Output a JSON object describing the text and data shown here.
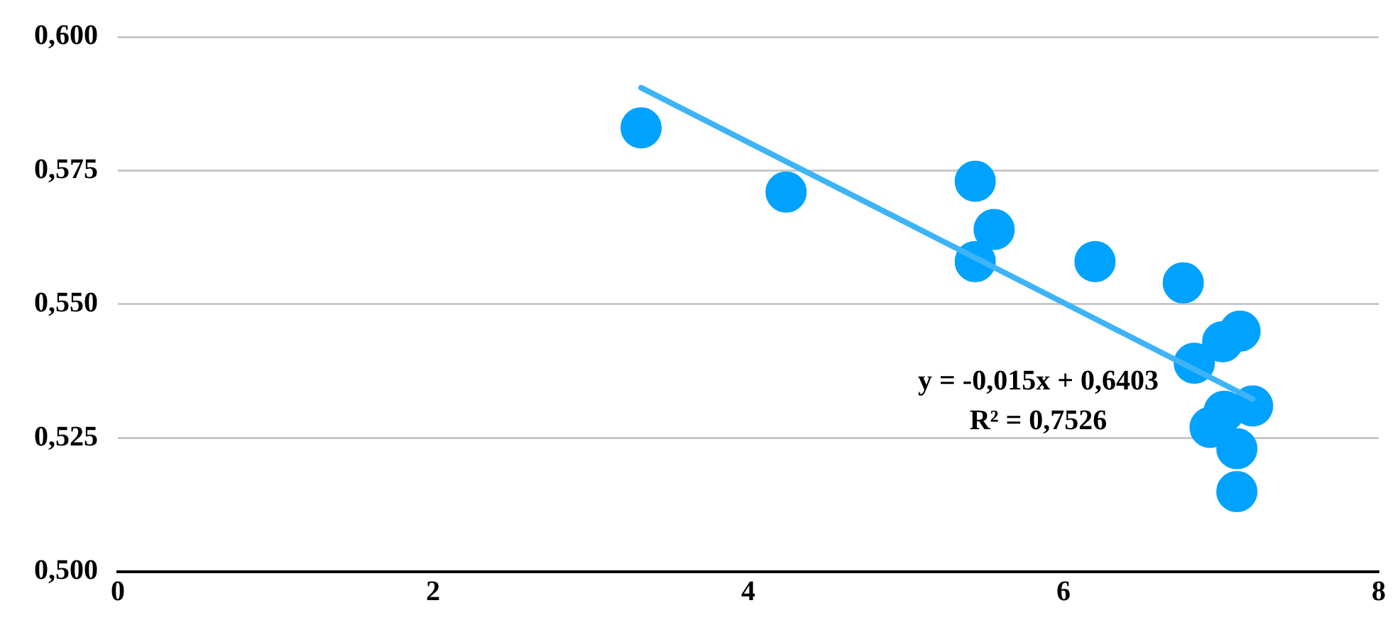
{
  "chart_data": {
    "type": "scatter",
    "marker": "circle",
    "grid": "y",
    "legend": false,
    "xlim": [
      0,
      8
    ],
    "xticks": [
      0,
      2,
      4,
      6,
      8
    ],
    "ylim": [
      0.5,
      0.6
    ],
    "yticks": [
      {
        "value": 0.5,
        "label": "0,500"
      },
      {
        "value": 0.525,
        "label": "0,525"
      },
      {
        "value": 0.55,
        "label": "0,550"
      },
      {
        "value": 0.575,
        "label": "0,575"
      },
      {
        "value": 0.6,
        "label": "0,600"
      }
    ],
    "series": [
      {
        "type": "scatter",
        "color": "#00a2ff",
        "x": [
          3.32,
          4.24,
          5.44,
          5.56,
          5.44,
          6.2,
          6.76,
          7.12,
          7.01,
          6.83,
          7.2,
          7.02,
          6.93,
          7.1,
          7.1
        ],
        "values": [
          0.583,
          0.571,
          0.573,
          0.564,
          0.558,
          0.558,
          0.554,
          0.545,
          0.543,
          0.539,
          0.531,
          0.53,
          0.527,
          0.523,
          0.515
        ]
      },
      {
        "type": "line",
        "marker": "none",
        "color": "#3db4f7",
        "x": [
          3.32,
          7.2
        ],
        "values": [
          0.5905,
          0.5323
        ]
      }
    ],
    "annotations": [
      "y = -0,015x + 0,6403",
      "R² = 0,7526"
    ]
  }
}
